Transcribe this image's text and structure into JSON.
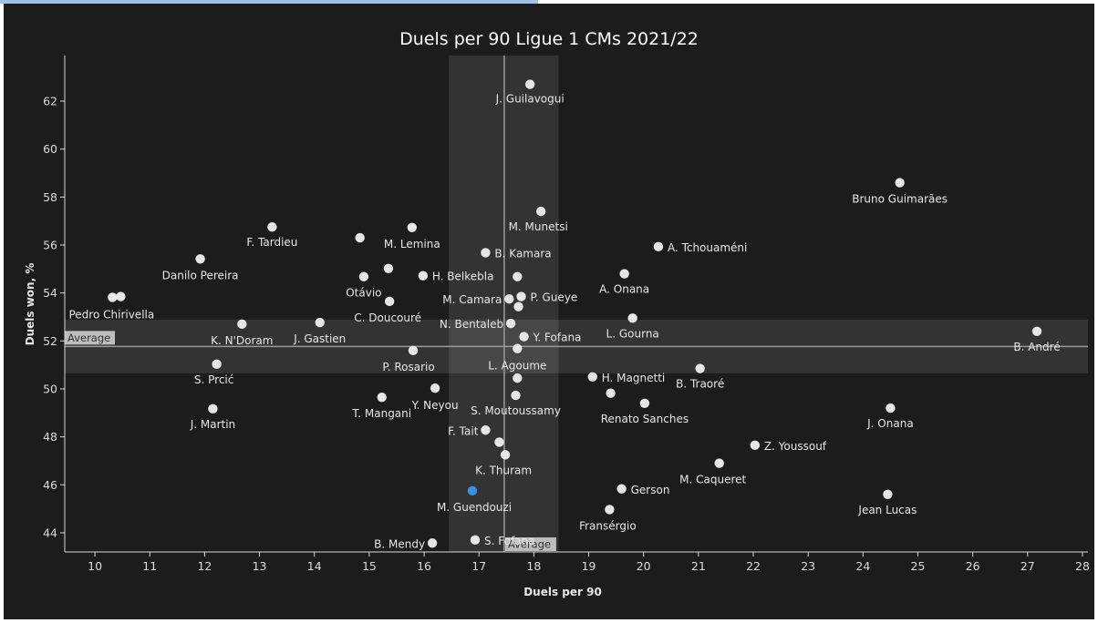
{
  "chart_data": {
    "type": "scatter",
    "title": "Duels per 90 Ligue 1 CMs 2021/22",
    "xlabel": "Duels per 90",
    "ylabel": "Duels won, %",
    "xlim": [
      9.45,
      28.1
    ],
    "ylim": [
      43.2,
      63.9
    ],
    "xticks": [
      10,
      11,
      12,
      13,
      14,
      15,
      16,
      17,
      18,
      19,
      20,
      21,
      22,
      23,
      24,
      25,
      26,
      27,
      28
    ],
    "yticks": [
      44,
      46,
      48,
      50,
      52,
      54,
      56,
      58,
      60,
      62
    ],
    "grid": false,
    "reference_lines": {
      "x": {
        "value": 17.46,
        "band": [
          16.45,
          18.45
        ],
        "label": "Average"
      },
      "y": {
        "value": 51.77,
        "band": [
          50.65,
          52.89
        ],
        "label": "Average"
      }
    },
    "colors": {
      "point": "#e6e6e6",
      "highlight": "#3a8fde",
      "line": "#9a9a9a",
      "band": "#ffffff"
    },
    "points": [
      {
        "name": "J. Guilavogui",
        "x": 17.93,
        "y": 62.7,
        "lx": 0,
        "ly": 20,
        "anchor": "middle"
      },
      {
        "name": "Bruno Guimarães",
        "x": 24.67,
        "y": 58.6,
        "lx": 0,
        "ly": 22,
        "anchor": "middle"
      },
      {
        "name": "M. Munetsi",
        "x": 18.13,
        "y": 57.4,
        "lx": -3,
        "ly": 21,
        "anchor": "middle"
      },
      {
        "name": "F. Tardieu",
        "x": 13.23,
        "y": 56.75,
        "lx": 0,
        "ly": 21,
        "anchor": "middle"
      },
      {
        "name": "M. Lemina",
        "x": 15.78,
        "y": 56.73,
        "lx": 0,
        "ly": 22,
        "anchor": "middle"
      },
      {
        "name": "",
        "x": 14.83,
        "y": 56.3,
        "lx": 0,
        "ly": 0,
        "anchor": "middle"
      },
      {
        "name": "A. Tchouaméni",
        "x": 20.27,
        "y": 55.93,
        "lx": 10,
        "ly": 5,
        "anchor": "start"
      },
      {
        "name": "B. Kamara",
        "x": 17.12,
        "y": 55.68,
        "lx": 10,
        "ly": 5,
        "anchor": "start"
      },
      {
        "name": "Danilo Pereira",
        "x": 11.92,
        "y": 55.42,
        "lx": 0,
        "ly": 22,
        "anchor": "middle"
      },
      {
        "name": "",
        "x": 15.35,
        "y": 55.02,
        "lx": 0,
        "ly": 0,
        "anchor": "middle"
      },
      {
        "name": "A. Onana",
        "x": 19.65,
        "y": 54.8,
        "lx": 0,
        "ly": 21,
        "anchor": "middle"
      },
      {
        "name": "H. Belkebla",
        "x": 15.98,
        "y": 54.72,
        "lx": 10,
        "ly": 5,
        "anchor": "start"
      },
      {
        "name": "Otávio",
        "x": 14.9,
        "y": 54.68,
        "lx": 0,
        "ly": 22,
        "anchor": "middle"
      },
      {
        "name": "",
        "x": 17.7,
        "y": 54.68,
        "lx": 0,
        "ly": 0,
        "anchor": "middle"
      },
      {
        "name": "",
        "x": 10.32,
        "y": 53.82,
        "lx": 0,
        "ly": 0,
        "anchor": "middle"
      },
      {
        "name": "Pedro Chirivella",
        "x": 10.47,
        "y": 53.85,
        "lx": -10,
        "ly": 24,
        "anchor": "middle"
      },
      {
        "name": "P. Gueye",
        "x": 17.77,
        "y": 53.85,
        "lx": 10,
        "ly": 5,
        "anchor": "start"
      },
      {
        "name": "M. Camara",
        "x": 17.55,
        "y": 53.75,
        "lx": -8,
        "ly": 5,
        "anchor": "end"
      },
      {
        "name": "C. Doucouré",
        "x": 15.37,
        "y": 53.65,
        "lx": -2,
        "ly": 22,
        "anchor": "middle"
      },
      {
        "name": "",
        "x": 17.72,
        "y": 53.43,
        "lx": 0,
        "ly": 0,
        "anchor": "middle"
      },
      {
        "name": "L. Gourna",
        "x": 19.8,
        "y": 52.95,
        "lx": 0,
        "ly": 21,
        "anchor": "middle"
      },
      {
        "name": "N. Bentaleb",
        "x": 17.58,
        "y": 52.73,
        "lx": -8,
        "ly": 5,
        "anchor": "end"
      },
      {
        "name": "K. N'Doram",
        "x": 12.68,
        "y": 52.7,
        "lx": 0,
        "ly": 22,
        "anchor": "middle"
      },
      {
        "name": "J. Gastien",
        "x": 14.1,
        "y": 52.77,
        "lx": 0,
        "ly": 22,
        "anchor": "middle"
      },
      {
        "name": "B. André",
        "x": 27.17,
        "y": 52.4,
        "lx": 0,
        "ly": 21,
        "anchor": "middle"
      },
      {
        "name": "Y. Fofana",
        "x": 17.82,
        "y": 52.18,
        "lx": 10,
        "ly": 5,
        "anchor": "start"
      },
      {
        "name": "L. Agoume",
        "x": 17.7,
        "y": 51.68,
        "lx": 0,
        "ly": 23,
        "anchor": "middle"
      },
      {
        "name": "P. Rosario",
        "x": 15.8,
        "y": 51.6,
        "lx": -5,
        "ly": 22,
        "anchor": "middle"
      },
      {
        "name": "S. Prcić",
        "x": 12.22,
        "y": 51.03,
        "lx": -3,
        "ly": 21,
        "anchor": "middle"
      },
      {
        "name": "B. Traoré",
        "x": 21.03,
        "y": 50.85,
        "lx": 0,
        "ly": 21,
        "anchor": "middle"
      },
      {
        "name": "H. Magnetti",
        "x": 19.07,
        "y": 50.5,
        "lx": 10,
        "ly": 5,
        "anchor": "start"
      },
      {
        "name": "",
        "x": 17.7,
        "y": 50.45,
        "lx": 0,
        "ly": 0,
        "anchor": "middle"
      },
      {
        "name": "Y. Neyou",
        "x": 16.2,
        "y": 50.03,
        "lx": 0,
        "ly": 23,
        "anchor": "middle"
      },
      {
        "name": "",
        "x": 19.4,
        "y": 49.82,
        "lx": 0,
        "ly": 0,
        "anchor": "middle"
      },
      {
        "name": "S. Moutoussamy",
        "x": 17.67,
        "y": 49.73,
        "lx": 0,
        "ly": 21,
        "anchor": "middle"
      },
      {
        "name": "T. Mangani",
        "x": 15.23,
        "y": 49.65,
        "lx": 0,
        "ly": 22,
        "anchor": "middle"
      },
      {
        "name": "Renato Sanches",
        "x": 20.02,
        "y": 49.4,
        "lx": 0,
        "ly": 21,
        "anchor": "middle"
      },
      {
        "name": "J. Martin",
        "x": 12.15,
        "y": 49.17,
        "lx": 0,
        "ly": 21,
        "anchor": "middle"
      },
      {
        "name": "J. Onana",
        "x": 24.5,
        "y": 49.2,
        "lx": 0,
        "ly": 21,
        "anchor": "middle"
      },
      {
        "name": "F. Tait",
        "x": 17.12,
        "y": 48.28,
        "lx": -8,
        "ly": 5,
        "anchor": "end"
      },
      {
        "name": "",
        "x": 17.37,
        "y": 47.78,
        "lx": 0,
        "ly": 0,
        "anchor": "middle"
      },
      {
        "name": "Z. Youssouf",
        "x": 22.03,
        "y": 47.65,
        "lx": 10,
        "ly": 5,
        "anchor": "start"
      },
      {
        "name": "K. Thuram",
        "x": 17.48,
        "y": 47.25,
        "lx": -2,
        "ly": 21,
        "anchor": "middle"
      },
      {
        "name": "M. Caqueret",
        "x": 21.38,
        "y": 46.9,
        "lx": -7,
        "ly": 22,
        "anchor": "middle"
      },
      {
        "name": "Gerson",
        "x": 19.6,
        "y": 45.83,
        "lx": 10,
        "ly": 5,
        "anchor": "start"
      },
      {
        "name": "M. Guendouzi",
        "x": 16.88,
        "y": 45.75,
        "lx": 2,
        "ly": 22,
        "anchor": "middle",
        "highlight": true
      },
      {
        "name": "Jean Lucas",
        "x": 24.45,
        "y": 45.6,
        "lx": 0,
        "ly": 21,
        "anchor": "middle"
      },
      {
        "name": "Fransérgio",
        "x": 19.38,
        "y": 44.97,
        "lx": -2,
        "ly": 22,
        "anchor": "middle"
      },
      {
        "name": "S. Fofana",
        "x": 16.93,
        "y": 43.7,
        "lx": 10,
        "ly": 5,
        "anchor": "start"
      },
      {
        "name": "B. Mendy",
        "x": 16.15,
        "y": 43.57,
        "lx": -8,
        "ly": 5,
        "anchor": "end"
      }
    ]
  }
}
